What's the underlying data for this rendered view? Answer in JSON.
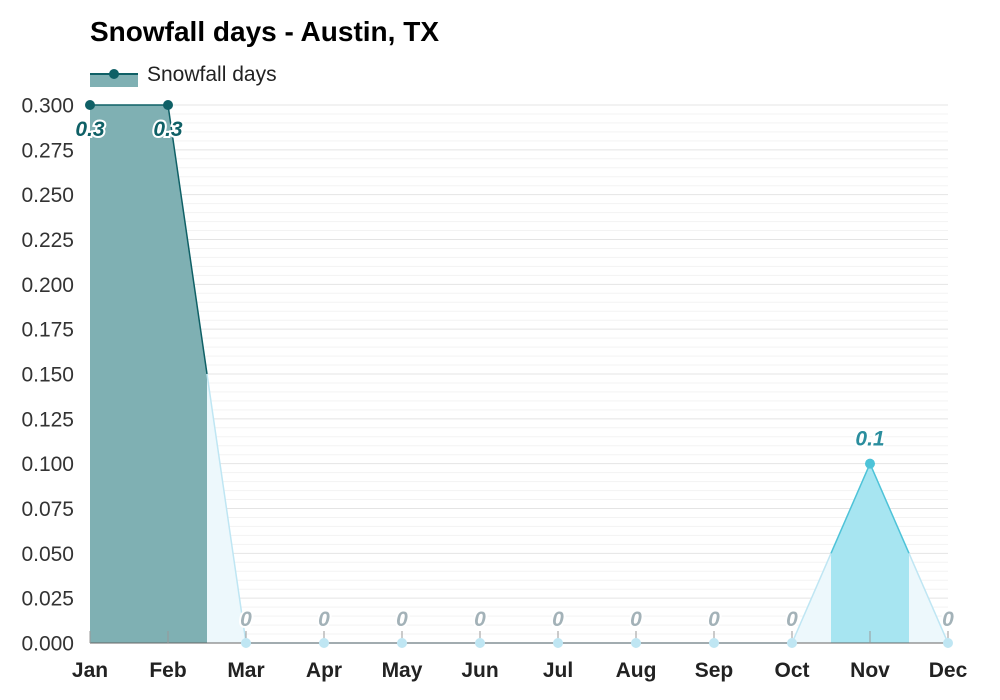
{
  "chart_data": {
    "type": "area",
    "title": "Snowfall days - Austin, TX",
    "categories": [
      "Jan",
      "Feb",
      "Mar",
      "Apr",
      "May",
      "Jun",
      "Jul",
      "Aug",
      "Sep",
      "Oct",
      "Nov",
      "Dec"
    ],
    "series": [
      {
        "name": "Snowfall days",
        "values": [
          0.3,
          0.3,
          0,
          0,
          0,
          0,
          0,
          0,
          0,
          0,
          0.1,
          0
        ]
      }
    ],
    "data_labels": [
      "0.3",
      "0.3",
      "0",
      "0",
      "0",
      "0",
      "0",
      "0",
      "0",
      "0",
      "0.1",
      "0"
    ],
    "y_ticks": [
      "0.000",
      "0.025",
      "0.050",
      "0.075",
      "0.100",
      "0.125",
      "0.150",
      "0.175",
      "0.200",
      "0.225",
      "0.250",
      "0.275",
      "0.300"
    ],
    "ylim": [
      0,
      0.3
    ],
    "xlabel": "",
    "ylabel": "",
    "grid": true,
    "legend_position": "top-left",
    "colors": {
      "high": "#0f6066",
      "high_fill": "#7fb0b3",
      "mid": "#4ec3d8",
      "mid_fill": "#a7e5f1",
      "zero": "#bfe6f3",
      "zero_fill": "#edf8fc",
      "zero_label": "#a3b2b8",
      "grid": "#e4e4e4",
      "minor_grid": "#f3f3f3",
      "axis": "#666666"
    }
  }
}
